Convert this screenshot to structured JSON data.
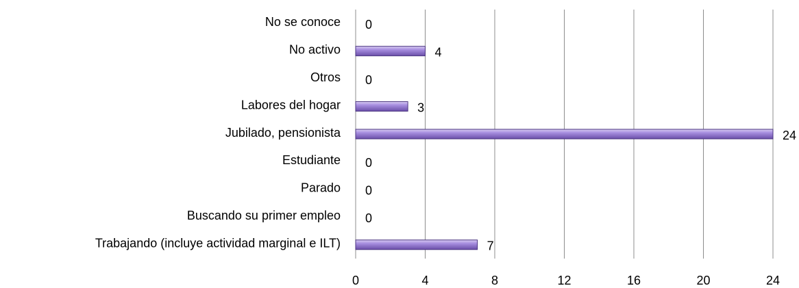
{
  "chart_data": {
    "type": "bar",
    "orientation": "horizontal",
    "categories": [
      "No se conoce",
      "No activo",
      "Otros",
      "Labores del hogar",
      "Jubilado, pensionista",
      "Estudiante",
      "Parado",
      "Buscando su primer empleo",
      "Trabajando (incluye actividad marginal e ILT)"
    ],
    "values": [
      0,
      4,
      0,
      3,
      24,
      0,
      0,
      0,
      7
    ],
    "color": "#9b7fd6",
    "xlim": [
      0,
      24
    ],
    "xticks": [
      0,
      4,
      8,
      12,
      16,
      20,
      24
    ],
    "grid": true
  }
}
